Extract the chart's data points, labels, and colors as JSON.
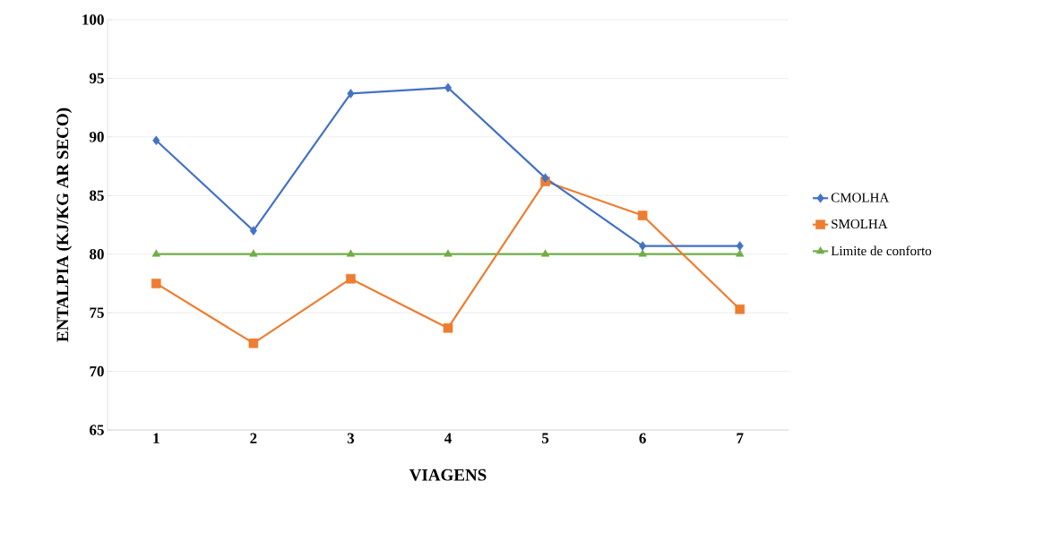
{
  "chart_data": {
    "type": "line",
    "xlabel": "VIAGENS",
    "ylabel": "ENTALPIA (KJ/KG AR SECO)",
    "categories": [
      "1",
      "2",
      "3",
      "4",
      "5",
      "6",
      "7"
    ],
    "series": [
      {
        "name": "CMOLHA",
        "color": "#4472c4",
        "marker": "diamond",
        "values": [
          89.7,
          82.0,
          93.7,
          94.2,
          86.5,
          80.7,
          80.7
        ]
      },
      {
        "name": "SMOLHA",
        "color": "#ed7d31",
        "marker": "square",
        "values": [
          77.5,
          72.4,
          77.9,
          73.7,
          86.2,
          83.3,
          75.3
        ]
      },
      {
        "name": "Limite de conforto",
        "color": "#70ad47",
        "marker": "triangle",
        "values": [
          80,
          80,
          80,
          80,
          80,
          80,
          80
        ]
      }
    ],
    "ylim": [
      65,
      100
    ],
    "yticks": [
      65,
      70,
      75,
      80,
      85,
      90,
      95,
      100
    ],
    "grid": "y",
    "legend": "right"
  }
}
